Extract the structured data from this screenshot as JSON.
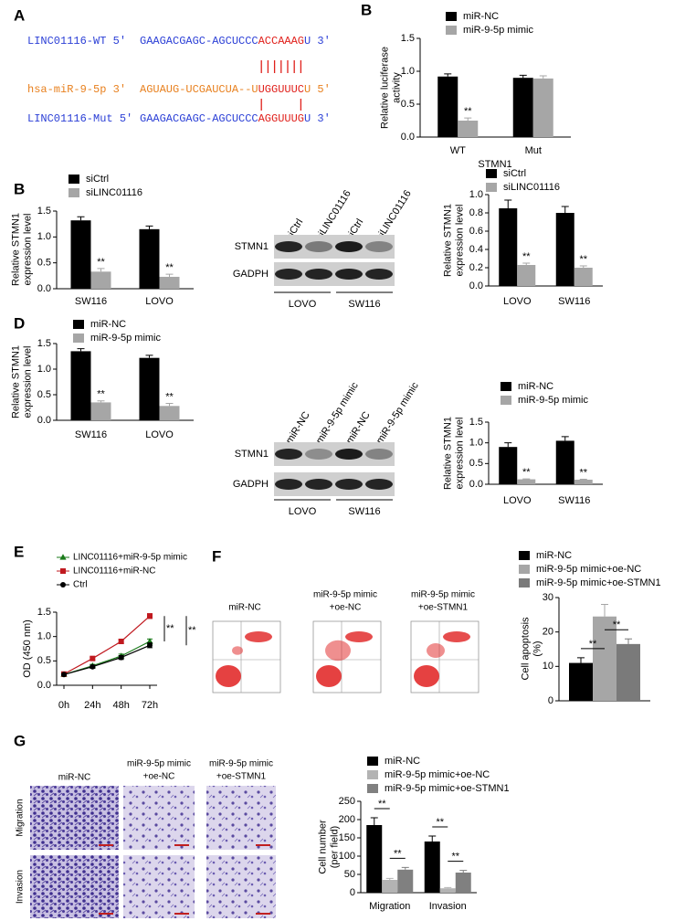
{
  "panel_labels": [
    "A",
    "B",
    "B",
    "D",
    "E",
    "F",
    "G"
  ],
  "sequences": [
    {
      "name": "LINC01116-WT 5'",
      "seq": "GAAGACGAGC-AGCUCCC",
      "site": "ACCAAAG",
      "end": "U 3'",
      "color": "#2b3fd6"
    },
    {
      "name": "hsa-miR-9-5p 3'",
      "seq": "AGUAUG-UCGAUCUA--U",
      "site": "UGGUUUC",
      "end": "U 5'",
      "color": "#e8801e"
    },
    {
      "name": "LINC01116-Mut 5'",
      "seq": "GAAGACGAGC-AGCUCCC",
      "site": "AGGUUUG",
      "end": "U 3'",
      "color": "#2b3fd6"
    }
  ],
  "site_color": "#e0201b",
  "blots": [
    {
      "lanes": [
        "siCtrl",
        "siLINC01116",
        "siCtrl",
        "siLINC01116"
      ],
      "proteins": [
        "STMN1",
        "GADPH"
      ],
      "groups": [
        "LOVO",
        "SW116"
      ]
    },
    {
      "lanes": [
        "miR-NC",
        "miR-9-5p mimic",
        "miR-NC",
        "miR-9-5p mimic"
      ],
      "proteins": [
        "STMN1",
        "GADPH"
      ],
      "groups": [
        "LOVO",
        "SW116"
      ]
    }
  ],
  "flow_titles": [
    [
      "miR-NC"
    ],
    [
      "miR-9-5p mimic",
      "+oe-NC"
    ],
    [
      "miR-9-5p mimic",
      "+oe-STMN1"
    ]
  ],
  "transwell_titles": [
    [
      "miR-NC"
    ],
    [
      "miR-9-5p mimic",
      "+oe-NC"
    ],
    [
      "miR-9-5p mimic",
      "+oe-STMN1"
    ]
  ],
  "transwell_rows": [
    "Migration",
    "Invasion"
  ],
  "chart_data": [
    {
      "type": "bar",
      "ylabel": [
        "Relative luciferase",
        "activity"
      ],
      "xlabel": "STMN1",
      "categories": [
        "WT",
        "Mut"
      ],
      "series": [
        {
          "name": "miR-NC",
          "color": "#000000",
          "values": [
            0.92,
            0.9
          ],
          "errors": [
            0.04,
            0.04
          ]
        },
        {
          "name": "miR-9-5p mimic",
          "color": "#a6a6a6",
          "values": [
            0.25,
            0.89
          ],
          "errors": [
            0.04,
            0.04
          ]
        }
      ],
      "ylim": [
        0,
        1.5
      ],
      "yticks": [
        {
          "value": 0,
          "label": "0.0"
        },
        {
          "value": 0.5,
          "label": "0.5"
        },
        {
          "value": 1,
          "label": "1.0"
        },
        {
          "value": 1.5,
          "label": "1.5"
        }
      ],
      "annotations": [
        "**"
      ]
    },
    {
      "type": "bar",
      "ylabel": [
        "Relative STMN1",
        "expression  level"
      ],
      "categories": [
        "SW116",
        "LOVO"
      ],
      "series": [
        {
          "name": "siCtrl",
          "color": "#000000",
          "values": [
            1.32,
            1.15
          ],
          "errors": [
            0.07,
            0.06
          ]
        },
        {
          "name": "siLINC01116",
          "color": "#a6a6a6",
          "values": [
            0.33,
            0.23
          ],
          "errors": [
            0.06,
            0.05
          ]
        }
      ],
      "ylim": [
        0,
        1.5
      ],
      "yticks": [
        {
          "value": 0,
          "label": "0.0"
        },
        {
          "value": 0.5,
          "label": "0.5"
        },
        {
          "value": 1,
          "label": "1.0"
        },
        {
          "value": 1.5,
          "label": "1.5"
        }
      ],
      "annotations": [
        "**",
        "**"
      ]
    },
    {
      "type": "bar",
      "ylabel": [
        "Relative STMN1",
        "expression level"
      ],
      "categories": [
        "LOVO",
        "SW116"
      ],
      "series": [
        {
          "name": "siCtrl",
          "color": "#000000",
          "values": [
            0.85,
            0.8
          ],
          "errors": [
            0.09,
            0.07
          ]
        },
        {
          "name": "siLINC01116",
          "color": "#a6a6a6",
          "values": [
            0.23,
            0.2
          ],
          "errors": [
            0.02,
            0.02
          ]
        }
      ],
      "ylim": [
        0,
        1
      ],
      "yticks": [
        {
          "value": 0,
          "label": "0.0"
        },
        0.2,
        0.4,
        0.6,
        0.8,
        {
          "value": 1,
          "label": "1.0"
        }
      ],
      "annotations": [
        "**",
        "**"
      ]
    },
    {
      "type": "bar",
      "ylabel": [
        "Relative STMN1",
        "expression level"
      ],
      "categories": [
        "SW116",
        "LOVO"
      ],
      "series": [
        {
          "name": "miR-NC",
          "color": "#000000",
          "values": [
            1.35,
            1.22
          ],
          "errors": [
            0.05,
            0.05
          ]
        },
        {
          "name": "miR-9-5p mimic",
          "color": "#a6a6a6",
          "values": [
            0.35,
            0.28
          ],
          "errors": [
            0.03,
            0.05
          ]
        }
      ],
      "ylim": [
        0,
        1.5
      ],
      "yticks": [
        {
          "value": 0,
          "label": "0.0"
        },
        {
          "value": 0.5,
          "label": "0.5"
        },
        {
          "value": 1,
          "label": "1.0"
        },
        {
          "value": 1.5,
          "label": "1.5"
        }
      ],
      "annotations": [
        "**",
        "**"
      ]
    },
    {
      "type": "bar",
      "ylabel": [
        "Relative STMN1",
        "expression level"
      ],
      "categories": [
        "LOVO",
        "SW116"
      ],
      "series": [
        {
          "name": "miR-NC",
          "color": "#000000",
          "values": [
            0.9,
            1.05
          ],
          "errors": [
            0.1,
            0.1
          ]
        },
        {
          "name": "miR-9-5p mimic",
          "color": "#a6a6a6",
          "values": [
            0.12,
            0.11
          ],
          "errors": [
            0.01,
            0.01
          ]
        }
      ],
      "ylim": [
        0,
        1.5
      ],
      "yticks": [
        {
          "value": 0,
          "label": "0.0"
        },
        {
          "value": 0.5,
          "label": "0.5"
        },
        {
          "value": 1,
          "label": "1.0"
        },
        {
          "value": 1.5,
          "label": "1.5"
        }
      ],
      "annotations": [
        "**",
        "**"
      ]
    },
    {
      "type": "line",
      "ylabel": [
        "OD (450 nm)"
      ],
      "categories": [
        "0h",
        "24h",
        "48h",
        "72h"
      ],
      "series": [
        {
          "name": "LINC01116+miR-9-5p mimic",
          "color": "#1a7a1a",
          "marker": "triangle",
          "values": [
            0.22,
            0.4,
            0.6,
            0.9
          ],
          "errors": [
            0.02,
            0.03,
            0.04,
            0.05
          ]
        },
        {
          "name": "LINC01116+miR-NC",
          "color": "#c0191f",
          "marker": "square",
          "values": [
            0.23,
            0.55,
            0.9,
            1.42
          ],
          "errors": [
            0.02,
            0.03,
            0.04,
            0.05
          ]
        },
        {
          "name": "Ctrl",
          "color": "#000000",
          "marker": "circle",
          "values": [
            0.22,
            0.38,
            0.57,
            0.82
          ],
          "errors": [
            0.02,
            0.03,
            0.04,
            0.05
          ]
        }
      ],
      "ylim": [
        0,
        1.5
      ],
      "yticks": [
        {
          "value": 0,
          "label": "0.0"
        },
        {
          "value": 0.5,
          "label": "0.5"
        },
        {
          "value": 1,
          "label": "1.0"
        },
        {
          "value": 1.5,
          "label": "1.5"
        }
      ],
      "annotations": [
        "**",
        "**"
      ]
    },
    {
      "type": "bar",
      "ylabel": [
        "Cell apoptosis",
        "(%)"
      ],
      "series": [
        {
          "name": "miR-NC",
          "color": "#000000",
          "values": [
            11
          ],
          "errors": [
            1.5
          ]
        },
        {
          "name": "miR-9-5p mimic+oe-NC",
          "color": "#a6a6a6",
          "values": [
            24.5
          ],
          "errors": [
            3.5
          ]
        },
        {
          "name": "miR-9-5p mimic+oe-STMN1",
          "color": "#7a7a7a",
          "values": [
            16.5
          ],
          "errors": [
            1.5
          ]
        }
      ],
      "ylim": [
        0,
        30
      ],
      "yticks": [
        0,
        10,
        20,
        30
      ],
      "annotations": [
        "**",
        "**"
      ]
    },
    {
      "type": "bar",
      "ylabel": [
        "Cell number",
        "(per field)"
      ],
      "categories": [
        "Migration",
        "Invasion"
      ],
      "series": [
        {
          "name": "miR-NC",
          "color": "#000000",
          "values": [
            185,
            140
          ],
          "errors": [
            20,
            15
          ]
        },
        {
          "name": "miR-9-5p mimic+oe-NC",
          "color": "#b3b3b3",
          "values": [
            35,
            12
          ],
          "errors": [
            4,
            2
          ]
        },
        {
          "name": "miR-9-5p mimic+oe-STMN1",
          "color": "#808080",
          "values": [
            63,
            55
          ],
          "errors": [
            6,
            6
          ]
        }
      ],
      "ylim": [
        0,
        250
      ],
      "yticks": [
        0,
        50,
        100,
        150,
        200,
        250
      ],
      "annotations": [
        "**",
        "**",
        "**",
        "**"
      ]
    }
  ]
}
